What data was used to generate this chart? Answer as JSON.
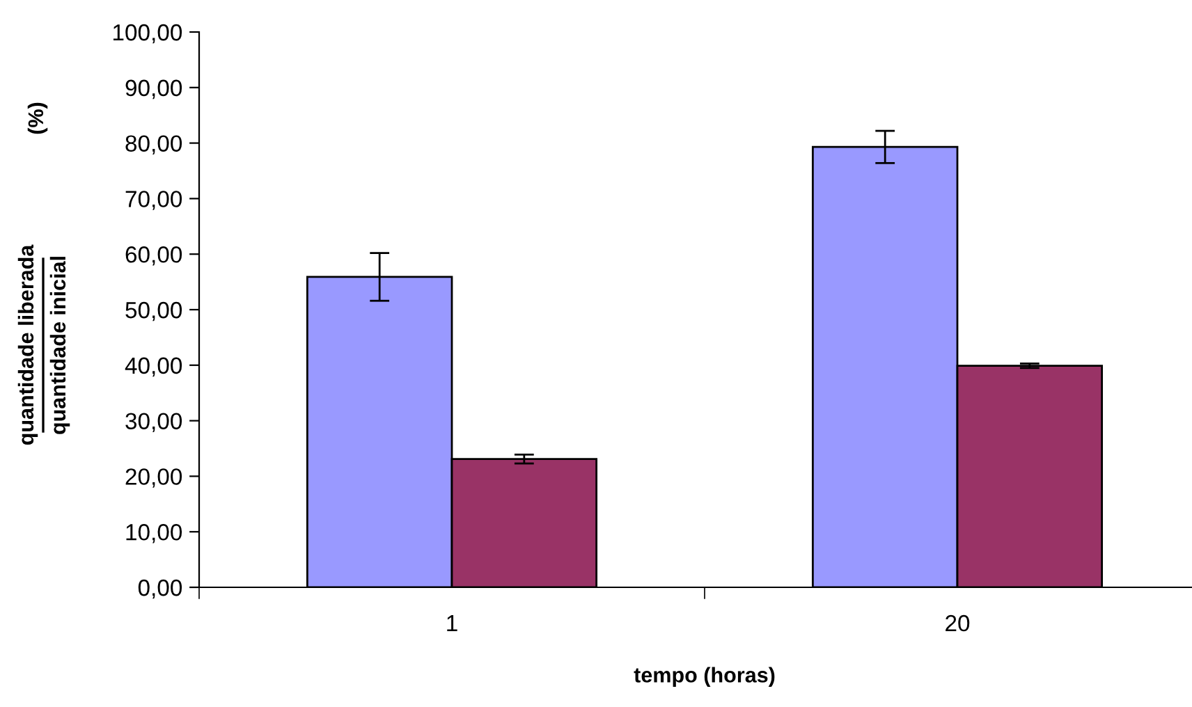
{
  "chart_data": {
    "type": "bar",
    "xlabel": "tempo (horas)",
    "ylabel": "quantidade liberada\nquantidade inicial\n(%)",
    "categories": [
      "1",
      "20"
    ],
    "series": [
      {
        "color": "#9999ff",
        "values": [
          55.9,
          79.3
        ],
        "errors": [
          4.3,
          2.9
        ]
      },
      {
        "color": "#993366",
        "values": [
          23.1,
          39.9
        ],
        "errors": [
          0.8,
          0.4
        ]
      }
    ],
    "ylim": [
      0,
      100
    ],
    "yticks": [
      {
        "value": 0,
        "label": "0,00"
      },
      {
        "value": 10,
        "label": "10,00"
      },
      {
        "value": 20,
        "label": "20,00"
      },
      {
        "value": 30,
        "label": "30,00"
      },
      {
        "value": 40,
        "label": "40,00"
      },
      {
        "value": 50,
        "label": "50,00"
      },
      {
        "value": 60,
        "label": "60,00"
      },
      {
        "value": 70,
        "label": "70,00"
      },
      {
        "value": 80,
        "label": "80,00"
      },
      {
        "value": 90,
        "label": "90,00"
      },
      {
        "value": 100,
        "label": "100,00"
      }
    ],
    "grid": false,
    "legend": false
  }
}
